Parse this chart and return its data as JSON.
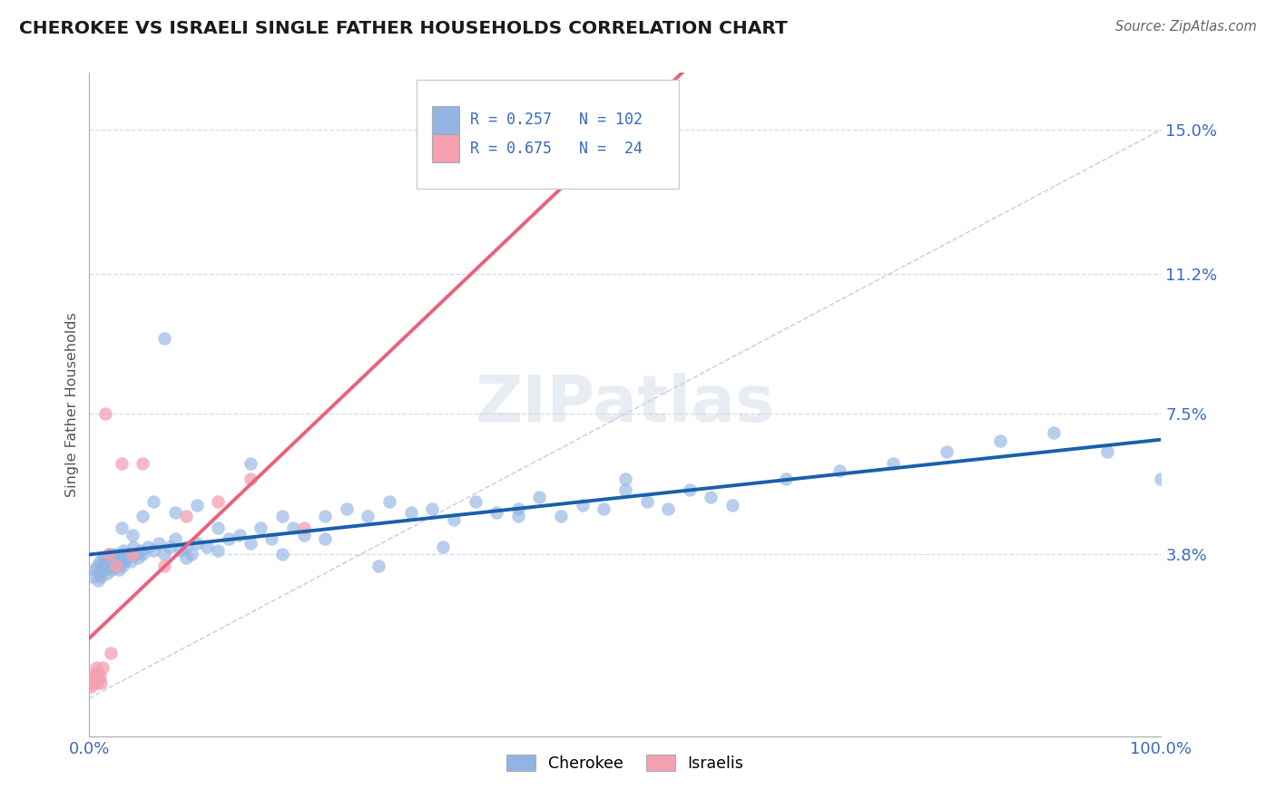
{
  "title": "CHEROKEE VS ISRAELI SINGLE FATHER HOUSEHOLDS CORRELATION CHART",
  "source": "Source: ZipAtlas.com",
  "ylabel": "Single Father Households",
  "ytick_values": [
    3.8,
    7.5,
    11.2,
    15.0
  ],
  "xlim": [
    0.0,
    100.0
  ],
  "ylim": [
    -1.0,
    16.5
  ],
  "legend_r_cherokee": "R = 0.257",
  "legend_n_cherokee": "N = 102",
  "legend_r_israelis": "R = 0.675",
  "legend_n_israelis": "N =  24",
  "cherokee_color": "#92b4e3",
  "israelis_color": "#f4a0b0",
  "cherokee_line_color": "#1a5faa",
  "israelis_line_color": "#e8637a",
  "ref_line_color": "#c8c8c8",
  "watermark": "ZIPatlas",
  "grid_color": "#d0dce8",
  "background": "#ffffff",
  "cherokee_x": [
    0.3,
    0.5,
    0.7,
    0.8,
    0.9,
    1.0,
    1.1,
    1.2,
    1.3,
    1.4,
    1.5,
    1.6,
    1.7,
    1.8,
    1.9,
    2.0,
    2.1,
    2.2,
    2.3,
    2.4,
    2.5,
    2.6,
    2.7,
    2.8,
    2.9,
    3.0,
    3.1,
    3.2,
    3.3,
    3.5,
    3.7,
    3.9,
    4.1,
    4.3,
    4.5,
    4.8,
    5.0,
    5.5,
    6.0,
    6.5,
    7.0,
    7.5,
    8.0,
    8.5,
    9.0,
    9.5,
    10.0,
    11.0,
    12.0,
    13.0,
    14.0,
    15.0,
    16.0,
    17.0,
    18.0,
    19.0,
    20.0,
    22.0,
    24.0,
    26.0,
    28.0,
    30.0,
    32.0,
    34.0,
    36.0,
    38.0,
    40.0,
    42.0,
    44.0,
    46.0,
    48.0,
    50.0,
    52.0,
    54.0,
    56.0,
    58.0,
    60.0,
    65.0,
    70.0,
    75.0,
    80.0,
    85.0,
    90.0,
    95.0,
    100.0,
    2.0,
    3.0,
    4.0,
    5.0,
    6.0,
    7.0,
    8.0,
    9.0,
    10.0,
    12.0,
    15.0,
    18.0,
    22.0,
    27.0,
    33.0,
    40.0,
    50.0
  ],
  "cherokee_y": [
    3.2,
    3.4,
    3.5,
    3.1,
    3.3,
    3.6,
    3.2,
    3.5,
    3.7,
    3.4,
    3.6,
    3.5,
    3.3,
    3.8,
    3.5,
    3.6,
    3.4,
    3.7,
    3.5,
    3.6,
    3.8,
    3.5,
    3.6,
    3.4,
    3.7,
    3.8,
    3.5,
    3.9,
    3.6,
    3.7,
    3.8,
    3.6,
    4.0,
    3.8,
    3.7,
    3.9,
    3.8,
    4.0,
    3.9,
    4.1,
    3.8,
    4.0,
    4.2,
    3.9,
    4.0,
    3.8,
    4.1,
    4.0,
    3.9,
    4.2,
    4.3,
    4.1,
    4.5,
    4.2,
    4.8,
    4.5,
    4.3,
    4.8,
    5.0,
    4.8,
    5.2,
    4.9,
    5.0,
    4.7,
    5.2,
    4.9,
    5.0,
    5.3,
    4.8,
    5.1,
    5.0,
    5.5,
    5.2,
    5.0,
    5.5,
    5.3,
    5.1,
    5.8,
    6.0,
    6.2,
    6.5,
    6.8,
    7.0,
    6.5,
    5.8,
    3.8,
    4.5,
    4.3,
    4.8,
    5.2,
    9.5,
    4.9,
    3.7,
    5.1,
    4.5,
    6.2,
    3.8,
    4.2,
    3.5,
    4.0,
    4.8,
    5.8
  ],
  "israelis_x": [
    0.1,
    0.2,
    0.3,
    0.4,
    0.5,
    0.6,
    0.7,
    0.8,
    0.9,
    1.0,
    1.1,
    1.2,
    1.5,
    1.8,
    2.0,
    2.5,
    3.0,
    4.0,
    5.0,
    7.0,
    9.0,
    12.0,
    15.0,
    20.0
  ],
  "israelis_y": [
    0.3,
    0.5,
    0.4,
    0.6,
    0.5,
    0.8,
    0.4,
    0.7,
    0.5,
    0.6,
    0.4,
    0.8,
    7.5,
    3.8,
    1.2,
    3.5,
    6.2,
    3.8,
    6.2,
    3.5,
    4.8,
    5.2,
    5.8,
    4.5
  ]
}
